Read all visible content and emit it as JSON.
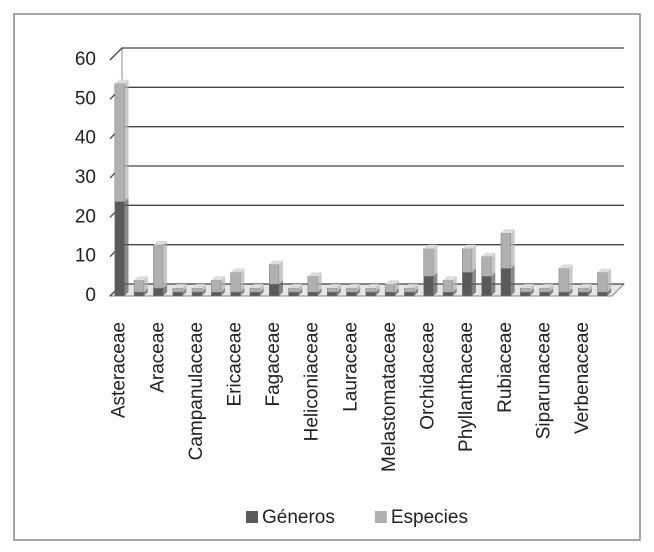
{
  "chart_data": {
    "type": "bar",
    "stacked": true,
    "categories": [
      "Asteraceae",
      null,
      "Araceae",
      null,
      "Campanulaceae",
      null,
      "Ericaceae",
      null,
      "Fagaceae",
      null,
      "Heliconiaceae",
      null,
      "Lauraceae",
      null,
      "Melastomataceae",
      null,
      "Orchidaceae",
      null,
      "Phyllanthaceae",
      null,
      "Rubiaceae",
      null,
      "Siparunaceae",
      null,
      "Verbenaceae",
      null
    ],
    "series": [
      {
        "name": "Géneros",
        "color": "#5a5a5a",
        "values": [
          24,
          1,
          2,
          1,
          1,
          1,
          1,
          1,
          3,
          1,
          1,
          1,
          1,
          1,
          1,
          1,
          5,
          1,
          6,
          5,
          7,
          1,
          1,
          1,
          1,
          1
        ]
      },
      {
        "name": "Especies",
        "color": "#b0b0b0",
        "values": [
          30,
          3,
          11,
          1,
          1,
          3,
          5,
          1,
          5,
          1,
          4,
          1,
          1,
          1,
          2,
          1,
          7,
          3,
          6,
          5,
          9,
          1,
          1,
          6,
          1,
          5
        ]
      }
    ],
    "ylim": [
      0,
      60
    ],
    "yticks": [
      0,
      10,
      20,
      30,
      40,
      50,
      60
    ],
    "grid": true,
    "legend": "bottom"
  }
}
